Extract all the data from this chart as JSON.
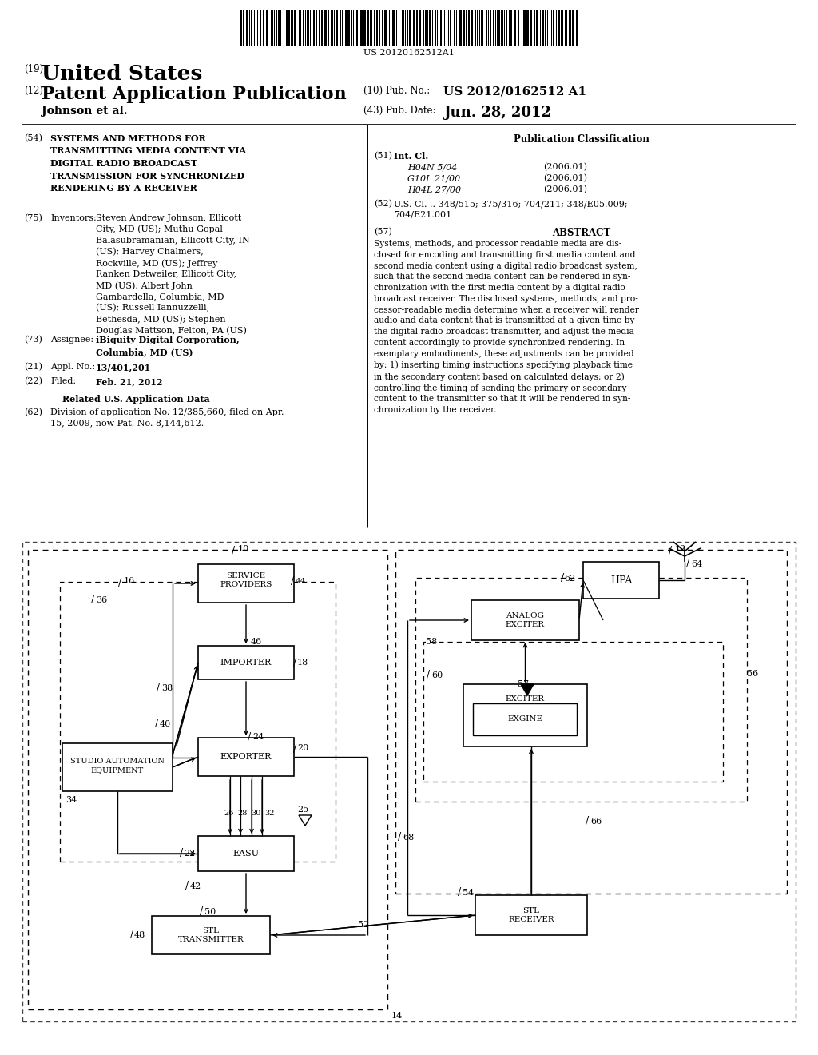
{
  "background_color": "#ffffff",
  "barcode_text": "US 20120162512A1",
  "title_19": "(19)",
  "title_country": "United States",
  "title_12": "(12)",
  "title_type": "Patent Application Publication",
  "pub_no_label": "(10) Pub. No.:",
  "pub_no_value": "US 2012/0162512 A1",
  "pub_date_label": "(43) Pub. Date:",
  "pub_date_value": "Jun. 28, 2012",
  "author_line": "Johnson et al.",
  "field_54_label": "(54)",
  "field_54_title": "SYSTEMS AND METHODS FOR\nTRANSMITTING MEDIA CONTENT VIA\nDIGITAL RADIO BROADCAST\nTRANSMISSION FOR SYNCHRONIZED\nRENDERING BY A RECEIVER",
  "field_75_label": "(75)",
  "field_75_name": "Inventors:",
  "field_75_text": "Steven Andrew Johnson, Ellicott\nCity, MD (US); Muthu Gopal\nBalasubramanian, Ellicott City, IN\n(US); Harvey Chalmers,\nRockville, MD (US); Jeffrey\nRanken Detweiler, Ellicott City,\nMD (US); Albert John\nGambardella, Columbia, MD\n(US); Russell Iannuzzelli,\nBethesda, MD (US); Stephen\nDouglas Mattson, Felton, PA (US)",
  "field_73_label": "(73)",
  "field_73_name": "Assignee:",
  "field_73_text": "iBiquity Digital Corporation,\nColumbia, MD (US)",
  "field_21_label": "(21)",
  "field_21_name": "Appl. No.:",
  "field_21_text": "13/401,201",
  "field_22_label": "(22)",
  "field_22_name": "Filed:",
  "field_22_text": "Feb. 21, 2012",
  "related_title": "Related U.S. Application Data",
  "field_62_label": "(62)",
  "field_62_text": "Division of application No. 12/385,660, filed on Apr.\n15, 2009, now Pat. No. 8,144,612.",
  "pub_class_title": "Publication Classification",
  "field_51_label": "(51)",
  "field_51_name": "Int. Cl.",
  "field_51_classes": [
    [
      "H04N 5/04",
      "(2006.01)"
    ],
    [
      "G10L 21/00",
      "(2006.01)"
    ],
    [
      "H04L 27/00",
      "(2006.01)"
    ]
  ],
  "field_52_label": "(52)",
  "field_52_text": "U.S. Cl. .. 348/515; 375/316; 704/211; 348/E05.009;\n704/E21.001",
  "field_57_label": "(57)",
  "field_57_name": "ABSTRACT",
  "abstract_text": "Systems, methods, and processor readable media are dis-\nclosed for encoding and transmitting first media content and\nsecond media content using a digital radio broadcast system,\nsuch that the second media content can be rendered in syn-\nchronization with the first media content by a digital radio\nbroadcast receiver. The disclosed systems, methods, and pro-\ncessor-readable media determine when a receiver will render\naudio and data content that is transmitted at a given time by\nthe digital radio broadcast transmitter, and adjust the media\ncontent accordingly to provide synchronized rendering. In\nexemplary embodiments, these adjustments can be provided\nby: 1) inserting timing instructions specifying playback time\nin the secondary content based on calculated delays; or 2)\ncontrolling the timing of sending the primary or secondary\ncontent to the transmitter so that it will be rendered in syn-\nchronization by the receiver."
}
